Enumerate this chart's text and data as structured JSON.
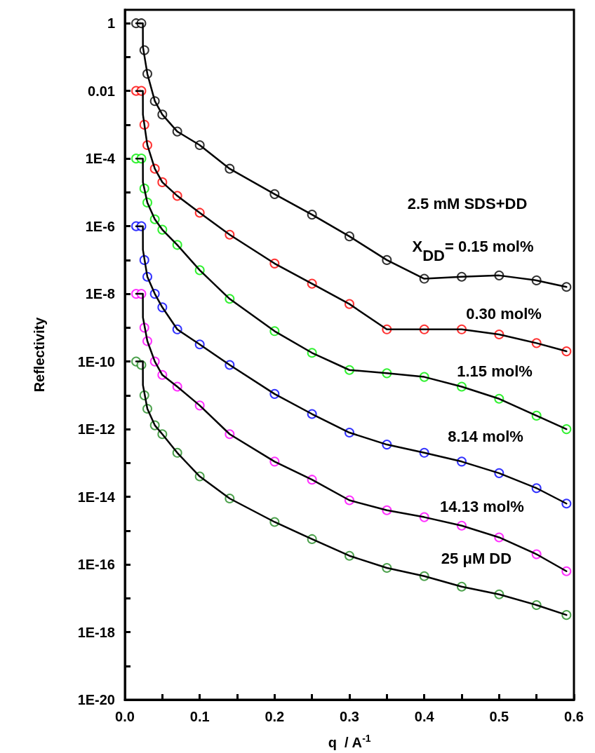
{
  "chart_data": {
    "type": "scatter",
    "xlabel": "q  / A$^{-1}$",
    "ylabel": "Reflectivity",
    "x": [
      0.015,
      0.022,
      0.026,
      0.03,
      0.04,
      0.05,
      0.07,
      0.1,
      0.14,
      0.2,
      0.25,
      0.3,
      0.35,
      0.4,
      0.45,
      0.5,
      0.55,
      0.59
    ],
    "series": [
      {
        "color": "#000000",
        "values": [
          1,
          1,
          0.16,
          0.032,
          0.005,
          0.002,
          0.00063,
          0.00025,
          5e-05,
          8.9e-06,
          2.2e-06,
          5e-07,
          1e-07,
          2.8e-08,
          3.2e-08,
          3.5e-08,
          2.5e-08,
          1.6e-08
        ]
      },
      {
        "color": "#ff0000",
        "values": [
          0.01,
          0.01,
          0.001,
          0.00025,
          5e-05,
          2e-05,
          7.9e-06,
          2.5e-06,
          5.6e-07,
          7.9e-08,
          2e-08,
          5e-09,
          8.9e-10,
          8.9e-10,
          8.9e-10,
          6.3e-10,
          3.5e-10,
          2e-10
        ]
      },
      {
        "color": "#00ee00",
        "values": [
          0.0001,
          0.0001,
          1.3e-05,
          5e-06,
          1.6e-06,
          7.9e-07,
          2.8e-07,
          5e-08,
          7.1e-09,
          7.9e-10,
          1.8e-10,
          5.6e-11,
          4.5e-11,
          3.5e-11,
          1.8e-11,
          7.9e-12,
          2.5e-12,
          1e-12
        ]
      },
      {
        "color": "#0000ff",
        "values": [
          1e-06,
          1e-06,
          1e-07,
          3.2e-08,
          1e-08,
          4e-09,
          8.9e-10,
          3.2e-10,
          7.9e-11,
          1.1e-11,
          2.8e-12,
          7.9e-13,
          3.5e-13,
          2e-13,
          1.1e-13,
          5e-14,
          1.8e-14,
          6.3e-15
        ]
      },
      {
        "color": "#ff00ff",
        "values": [
          1e-08,
          1e-08,
          1e-09,
          4e-10,
          1e-10,
          4e-11,
          1.8e-11,
          5e-12,
          7.1e-13,
          1.1e-13,
          3.2e-14,
          7.9e-15,
          4e-15,
          2.5e-15,
          1.4e-15,
          6.3e-16,
          2e-16,
          6.3e-17
        ]
      },
      {
        "color": "#228b22",
        "values": [
          1e-10,
          7.9e-11,
          1e-11,
          4e-12,
          1.3e-12,
          7.1e-13,
          2e-13,
          4e-14,
          8.9e-15,
          1.8e-15,
          5.6e-16,
          1.8e-16,
          7.9e-17,
          4.5e-17,
          2.2e-17,
          1.3e-17,
          6.3e-18,
          3.2e-18
        ]
      },
      {
        "type": "line",
        "color": "#000000",
        "x": [
          0.015,
          0.024,
          0.0241,
          0.03,
          0.04,
          0.05,
          0.07,
          0.1,
          0.14,
          0.2,
          0.25,
          0.3,
          0.35,
          0.4,
          0.45,
          0.5,
          0.55,
          0.59
        ],
        "values": [
          1,
          1,
          0.2,
          0.032,
          0.005,
          0.002,
          0.00063,
          0.00025,
          5e-05,
          8.9e-06,
          2.2e-06,
          5e-07,
          1e-07,
          2.8e-08,
          3.2e-08,
          3.5e-08,
          2.5e-08,
          1.6e-08
        ]
      },
      {
        "type": "line",
        "color": "#000000",
        "x": [
          0.015,
          0.024,
          0.0241,
          0.03,
          0.04,
          0.05,
          0.07,
          0.1,
          0.14,
          0.2,
          0.25,
          0.3,
          0.35,
          0.4,
          0.45,
          0.5,
          0.55,
          0.59
        ],
        "values": [
          0.01,
          0.01,
          0.002,
          0.00025,
          5e-05,
          2e-05,
          7.9e-06,
          2.5e-06,
          5.6e-07,
          7.9e-08,
          2e-08,
          5e-09,
          8.9e-10,
          8.9e-10,
          8.9e-10,
          6.3e-10,
          3.5e-10,
          2e-10
        ]
      },
      {
        "type": "line",
        "color": "#000000",
        "x": [
          0.015,
          0.024,
          0.0241,
          0.03,
          0.04,
          0.05,
          0.07,
          0.1,
          0.14,
          0.2,
          0.25,
          0.3,
          0.35,
          0.4,
          0.45,
          0.5,
          0.55,
          0.59
        ],
        "values": [
          0.0001,
          0.0001,
          2e-05,
          5e-06,
          1.6e-06,
          7.9e-07,
          2.8e-07,
          5e-08,
          7.1e-09,
          7.9e-10,
          1.8e-10,
          5.6e-11,
          4.5e-11,
          3.5e-11,
          1.8e-11,
          7.9e-12,
          2.5e-12,
          1e-12
        ]
      },
      {
        "type": "line",
        "color": "#000000",
        "x": [
          0.015,
          0.024,
          0.0241,
          0.03,
          0.04,
          0.05,
          0.07,
          0.1,
          0.14,
          0.2,
          0.25,
          0.3,
          0.35,
          0.4,
          0.45,
          0.5,
          0.55,
          0.59
        ],
        "values": [
          1e-06,
          1e-06,
          2e-07,
          3.2e-08,
          1e-08,
          4e-09,
          8.9e-10,
          3.2e-10,
          7.9e-11,
          1.1e-11,
          2.8e-12,
          7.9e-13,
          3.5e-13,
          2e-13,
          1.1e-13,
          5e-14,
          1.8e-14,
          6.3e-15
        ]
      },
      {
        "type": "line",
        "color": "#000000",
        "x": [
          0.015,
          0.024,
          0.0241,
          0.03,
          0.04,
          0.05,
          0.07,
          0.1,
          0.14,
          0.2,
          0.25,
          0.3,
          0.35,
          0.4,
          0.45,
          0.5,
          0.55,
          0.59
        ],
        "values": [
          1e-08,
          1e-08,
          2e-09,
          4e-10,
          1e-10,
          4e-11,
          1.8e-11,
          5e-12,
          7.1e-13,
          1.1e-13,
          3.2e-14,
          7.9e-15,
          4e-15,
          2.5e-15,
          1.4e-15,
          6.3e-16,
          2e-16,
          6.3e-17
        ]
      },
      {
        "type": "line",
        "color": "#000000",
        "x": [
          0.015,
          0.024,
          0.0241,
          0.03,
          0.04,
          0.05,
          0.07,
          0.1,
          0.14,
          0.2,
          0.25,
          0.3,
          0.35,
          0.4,
          0.45,
          0.5,
          0.55,
          0.59
        ],
        "values": [
          1e-10,
          1e-10,
          2e-11,
          4e-12,
          1.3e-12,
          7.1e-13,
          2e-13,
          4e-14,
          8.9e-15,
          1.8e-15,
          5.6e-16,
          1.8e-16,
          7.9e-17,
          4.5e-17,
          2.2e-17,
          1.3e-17,
          6.3e-18,
          3.2e-18
        ]
      }
    ],
    "xlim": [
      0,
      0.6
    ],
    "xticks": [
      {
        "value": 0,
        "label": "0.0"
      },
      {
        "value": 0.05,
        "label": null
      },
      0.1,
      {
        "value": 0.15,
        "label": null
      },
      0.2,
      {
        "value": 0.25,
        "label": null
      },
      0.3,
      {
        "value": 0.35,
        "label": null
      },
      0.4,
      {
        "value": 0.45,
        "label": null
      },
      0.5,
      {
        "value": 0.55,
        "label": null
      },
      0.6
    ],
    "ylim": [
      1e-20,
      2.5
    ],
    "yticks": [
      {
        "value": 1e-20,
        "label": "1E-20"
      },
      {
        "value": 1e-19,
        "label": null
      },
      {
        "value": 1e-18,
        "label": "1E-18"
      },
      {
        "value": 1e-17,
        "label": null
      },
      {
        "value": 1e-16,
        "label": "1E-16"
      },
      {
        "value": 1e-15,
        "label": null
      },
      {
        "value": 1e-14,
        "label": "1E-14"
      },
      {
        "value": 1e-13,
        "label": null
      },
      {
        "value": 1e-12,
        "label": "1E-12"
      },
      {
        "value": 1e-11,
        "label": null
      },
      {
        "value": 1e-10,
        "label": "1E-10"
      },
      {
        "value": 1e-09,
        "label": null
      },
      {
        "value": 1e-08,
        "label": "1E-8"
      },
      {
        "value": 1e-07,
        "label": null
      },
      {
        "value": 1e-06,
        "label": "1E-6"
      },
      {
        "value": 1e-05,
        "label": null
      },
      {
        "value": 0.0001,
        "label": "1E-4"
      },
      {
        "value": 0.001,
        "label": null
      },
      0.01,
      {
        "value": 0.1,
        "label": null
      },
      1
    ],
    "log": "y",
    "grid": false,
    "line_style": "solid",
    "annotations": [
      "2.5 mM SDS+DD",
      "X$_{DD}$= 0.15 mol%",
      "0.30 mol%",
      "1.15 mol%",
      "8.14 mol%",
      "14.13 mol%",
      "25 μM DD"
    ]
  }
}
